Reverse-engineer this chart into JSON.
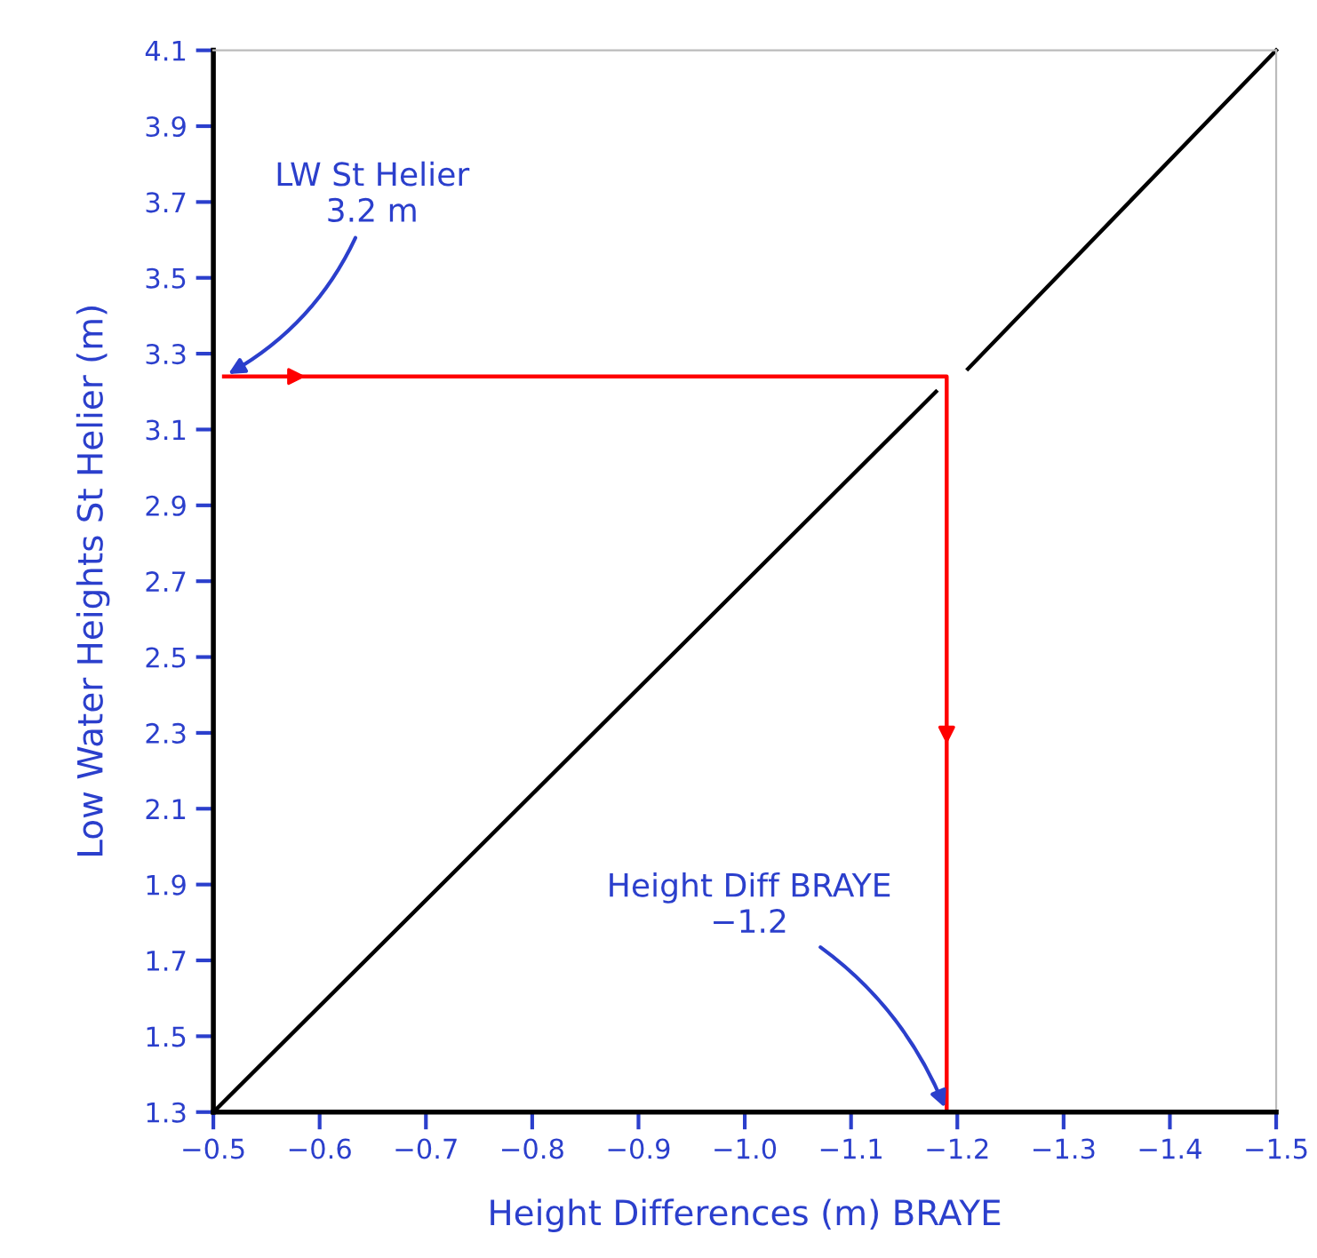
{
  "chart_data": {
    "type": "line",
    "xlabel": "Height Differences (m) BRAYE",
    "ylabel": "Low Water Heights St Helier (m)",
    "xlim": [
      -0.5,
      -1.5
    ],
    "xticks": [
      {
        "value": -0.5,
        "label": "−0.5"
      },
      {
        "value": -0.6,
        "label": "−0.6"
      },
      {
        "value": -0.7,
        "label": "−0.7"
      },
      {
        "value": -0.8,
        "label": "−0.8"
      },
      {
        "value": -0.9,
        "label": "−0.9"
      },
      {
        "value": -1.0,
        "label": "−1.0"
      },
      {
        "value": -1.1,
        "label": "−1.1"
      },
      {
        "value": -1.2,
        "label": "−1.2"
      },
      {
        "value": -1.3,
        "label": "−1.3"
      },
      {
        "value": -1.4,
        "label": "−1.4"
      },
      {
        "value": -1.5,
        "label": "−1.5"
      }
    ],
    "ylim": [
      1.3,
      4.1
    ],
    "yticks": [
      1.3,
      1.5,
      1.7,
      1.9,
      2.1,
      2.3,
      2.5,
      2.7,
      2.9,
      3.1,
      3.3,
      3.5,
      3.7,
      3.9,
      4.1
    ],
    "series": [
      {
        "color": "#000000",
        "x": [
          -0.5,
          -1.18,
          -1.19,
          -1.21,
          -1.5
        ],
        "values": [
          1.3,
          3.2,
          null,
          3.26,
          4.1
        ]
      },
      {
        "color": "#ff0000",
        "x": [
          -0.51,
          -1.19,
          -1.19
        ],
        "values": [
          3.24,
          3.24,
          1.3
        ]
      }
    ],
    "annotations": [
      {
        "text": "LW St Helier\n3.2 m",
        "x": -0.51,
        "y": 3.24
      },
      {
        "text": "Height Diff BRAYE\n−1.2",
        "x": -1.19,
        "y": 1.3
      }
    ],
    "grid": false,
    "legend": false,
    "marker": "none",
    "line_style": "solid"
  }
}
